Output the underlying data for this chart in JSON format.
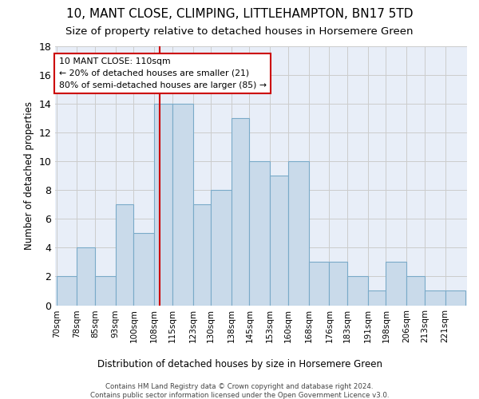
{
  "title": "10, MANT CLOSE, CLIMPING, LITTLEHAMPTON, BN17 5TD",
  "subtitle": "Size of property relative to detached houses in Horsemere Green",
  "xlabel_bottom": "Distribution of detached houses by size in Horsemere Green",
  "ylabel": "Number of detached properties",
  "footer1": "Contains HM Land Registry data © Crown copyright and database right 2024.",
  "footer2": "Contains public sector information licensed under the Open Government Licence v3.0.",
  "bar_labels": [
    "70sqm",
    "78sqm",
    "85sqm",
    "93sqm",
    "100sqm",
    "108sqm",
    "115sqm",
    "123sqm",
    "130sqm",
    "138sqm",
    "145sqm",
    "153sqm",
    "160sqm",
    "168sqm",
    "176sqm",
    "183sqm",
    "191sqm",
    "198sqm",
    "206sqm",
    "213sqm",
    "221sqm"
  ],
  "bar_values": [
    2,
    4,
    2,
    7,
    5,
    14,
    14,
    7,
    8,
    13,
    10,
    9,
    10,
    3,
    3,
    2,
    1,
    3,
    2,
    1,
    1
  ],
  "bin_edges": [
    70,
    78,
    85,
    93,
    100,
    108,
    115,
    123,
    130,
    138,
    145,
    153,
    160,
    168,
    176,
    183,
    191,
    198,
    206,
    213,
    221,
    229
  ],
  "bar_color": "#c9daea",
  "bar_edge_color": "#7aaac8",
  "vline_x": 110,
  "vline_color": "#cc0000",
  "annotation_title": "10 MANT CLOSE: 110sqm",
  "annotation_line2": "← 20% of detached houses are smaller (21)",
  "annotation_line3": "80% of semi-detached houses are larger (85) →",
  "annotation_box_edge_color": "#cc0000",
  "ylim": [
    0,
    18
  ],
  "yticks": [
    0,
    2,
    4,
    6,
    8,
    10,
    12,
    14,
    16,
    18
  ],
  "grid_color": "#cccccc",
  "bg_color": "#ffffff",
  "plot_bg_color": "#e8eef8",
  "title_fontsize": 11,
  "subtitle_fontsize": 9.5
}
